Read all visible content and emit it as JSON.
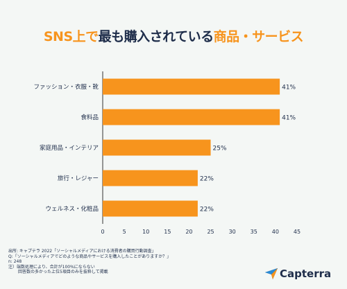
{
  "title": {
    "part1": "SNS上で",
    "part2": "最も購入されている",
    "part3": "商品・サービス"
  },
  "chart_data": {
    "type": "bar",
    "orientation": "horizontal",
    "categories": [
      "ファッション・衣服・靴",
      "食料品",
      "家庭用品・インテリア",
      "旅行・レジャー",
      "ウェルネス・化粧品"
    ],
    "values": [
      41,
      41,
      25,
      22,
      22
    ],
    "value_labels": [
      "41%",
      "41%",
      "25%",
      "22%",
      "22%"
    ],
    "xlim": [
      0,
      45
    ],
    "xticks": [
      0,
      5,
      10,
      15,
      20,
      25,
      30,
      35,
      40,
      45
    ],
    "grid": false,
    "bar_color": "#f7941d",
    "title": "SNS上で最も購入されている商品・サービス"
  },
  "footnote": {
    "source": "出所: キャプテラ 2022「ソーシャルメディアにおける消費者の購買行動調査」",
    "question": "Q:「ソーシャルメディアでどのような商品やサービスを購入したことがありますか？」",
    "n": "n: 248",
    "note1": "注）端数処理により、合計が100%にならない",
    "note2": "回答数の多かった上位5項目のみを抜粋して掲載"
  },
  "logo": {
    "text": "Capterra",
    "icon": "capterra-arrow-icon"
  },
  "colors": {
    "accent": "#f7941d",
    "dark": "#1e2d4a",
    "background": "#f4f7f5"
  }
}
